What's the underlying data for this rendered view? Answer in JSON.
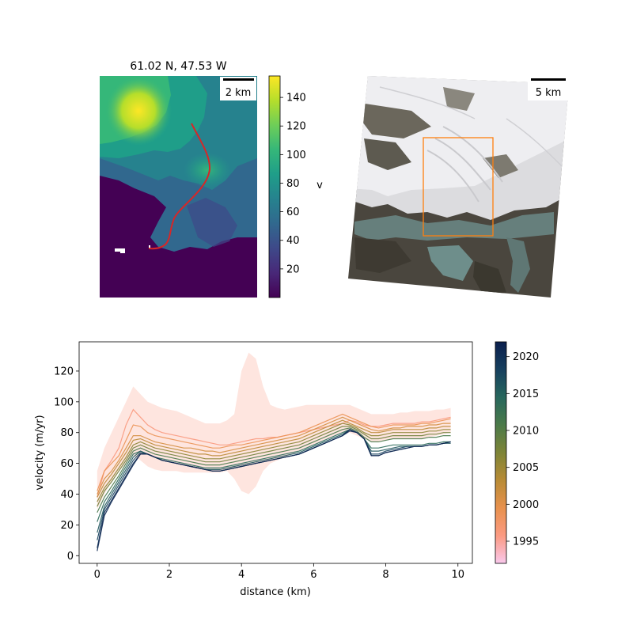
{
  "colors": {
    "viridis": [
      "#440154",
      "#482878",
      "#3e4989",
      "#31688e",
      "#26828e",
      "#1f9e89",
      "#35b779",
      "#6ece58",
      "#b5de2b",
      "#fde725"
    ],
    "time": [
      "#f9c8ec",
      "#fb9a82",
      "#e8914d",
      "#b88b35",
      "#7d8437",
      "#4b7a49",
      "#27675d",
      "#163f5e",
      "#0b1f4d"
    ],
    "profile_line": "#d62728",
    "inset_box": "#ff7f0e"
  },
  "velocity_map": {
    "title": "61.02 N, 47.53 W",
    "scalebar_label": "2 km",
    "colorbar_label": "v",
    "colorbar_ticks": [
      20,
      40,
      60,
      80,
      100,
      120,
      140
    ],
    "colorbar_range": [
      0,
      155
    ]
  },
  "satellite_map": {
    "scalebar_label": "5 km"
  },
  "chart_data": {
    "type": "line",
    "xlabel": "distance (km)",
    "ylabel": "velocity (m/yr)",
    "xlim": [
      -0.5,
      10.4
    ],
    "ylim": [
      -5,
      139
    ],
    "xticks": [
      0,
      2,
      4,
      6,
      8,
      10
    ],
    "yticks": [
      0,
      20,
      40,
      60,
      80,
      100,
      120
    ],
    "colorbar": {
      "ticks": [
        1995,
        2000,
        2005,
        2010,
        2015,
        2020
      ],
      "range": [
        1992,
        2022
      ]
    },
    "x": [
      0,
      0.2,
      0.4,
      0.6,
      0.8,
      1.0,
      1.2,
      1.4,
      1.6,
      1.8,
      2.0,
      2.2,
      2.4,
      2.6,
      2.8,
      3.0,
      3.2,
      3.4,
      3.6,
      3.8,
      4.0,
      4.2,
      4.4,
      4.6,
      4.8,
      5.0,
      5.2,
      5.4,
      5.6,
      5.8,
      6.0,
      6.2,
      6.4,
      6.6,
      6.8,
      7.0,
      7.2,
      7.4,
      7.6,
      7.8,
      8.0,
      8.2,
      8.4,
      8.6,
      8.8,
      9.0,
      9.2,
      9.4,
      9.6,
      9.8
    ],
    "series": [
      {
        "year": 1996,
        "values": [
          38,
          55,
          62,
          70,
          85,
          95,
          90,
          85,
          82,
          80,
          79,
          78,
          77,
          76,
          75,
          74,
          73,
          72,
          72,
          73,
          74,
          75,
          76,
          76,
          77,
          77,
          78,
          79,
          80,
          81,
          82,
          83,
          84,
          85,
          86,
          88,
          87,
          85,
          84,
          84,
          85,
          86,
          86,
          86,
          86,
          87,
          87,
          88,
          89,
          90
        ]
      },
      {
        "year": 1999,
        "values": [
          42,
          55,
          60,
          65,
          75,
          85,
          84,
          80,
          78,
          77,
          76,
          75,
          74,
          73,
          72,
          71,
          70,
          70,
          71,
          72,
          72,
          73,
          74,
          75,
          76,
          77,
          78,
          79,
          80,
          82,
          84,
          86,
          88,
          90,
          92,
          90,
          88,
          86,
          84,
          83,
          84,
          85,
          85,
          85,
          85,
          86,
          86,
          87,
          88,
          89
        ]
      },
      {
        "year": 2001,
        "values": [
          40,
          50,
          55,
          62,
          70,
          78,
          78,
          76,
          74,
          73,
          72,
          71,
          70,
          70,
          69,
          68,
          68,
          67,
          68,
          69,
          70,
          71,
          72,
          73,
          74,
          75,
          76,
          77,
          78,
          80,
          82,
          84,
          86,
          88,
          90,
          88,
          86,
          84,
          82,
          81,
          82,
          83,
          83,
          84,
          84,
          84,
          85,
          85,
          86,
          86
        ]
      },
      {
        "year": 2003,
        "values": [
          38,
          47,
          53,
          60,
          67,
          75,
          76,
          74,
          72,
          71,
          70,
          69,
          68,
          67,
          66,
          66,
          65,
          65,
          66,
          67,
          68,
          69,
          70,
          71,
          72,
          73,
          74,
          75,
          76,
          78,
          80,
          82,
          84,
          86,
          88,
          86,
          84,
          82,
          80,
          80,
          81,
          82,
          82,
          82,
          82,
          82,
          83,
          83,
          84,
          84
        ]
      },
      {
        "year": 2006,
        "values": [
          35,
          44,
          50,
          57,
          64,
          72,
          74,
          72,
          70,
          69,
          68,
          67,
          66,
          65,
          64,
          63,
          63,
          63,
          64,
          65,
          66,
          67,
          68,
          69,
          70,
          71,
          72,
          73,
          74,
          76,
          78,
          80,
          82,
          84,
          86,
          85,
          83,
          80,
          78,
          78,
          79,
          80,
          80,
          80,
          80,
          80,
          81,
          81,
          82,
          82
        ]
      },
      {
        "year": 2008,
        "values": [
          32,
          42,
          48,
          55,
          62,
          70,
          72,
          70,
          68,
          67,
          66,
          65,
          64,
          63,
          62,
          61,
          61,
          61,
          62,
          63,
          64,
          65,
          66,
          67,
          68,
          69,
          70,
          71,
          72,
          74,
          76,
          78,
          80,
          82,
          84,
          84,
          82,
          79,
          76,
          76,
          77,
          78,
          78,
          78,
          78,
          78,
          79,
          79,
          80,
          80
        ]
      },
      {
        "year": 2011,
        "values": [
          28,
          38,
          45,
          52,
          60,
          68,
          70,
          68,
          66,
          65,
          64,
          63,
          62,
          61,
          60,
          59,
          59,
          59,
          60,
          61,
          62,
          63,
          64,
          65,
          66,
          67,
          68,
          69,
          70,
          72,
          74,
          76,
          78,
          80,
          82,
          83,
          81,
          77,
          74,
          74,
          75,
          76,
          76,
          76,
          76,
          76,
          77,
          77,
          78,
          78
        ]
      },
      {
        "year": 2014,
        "values": [
          22,
          35,
          42,
          50,
          58,
          66,
          68,
          66,
          64,
          63,
          62,
          61,
          60,
          59,
          58,
          57,
          57,
          57,
          58,
          59,
          60,
          61,
          62,
          63,
          64,
          65,
          66,
          67,
          68,
          70,
          72,
          74,
          76,
          78,
          80,
          82,
          80,
          76,
          70,
          70,
          71,
          72,
          72,
          72,
          72,
          72,
          73,
          73,
          74,
          74
        ]
      },
      {
        "year": 2016,
        "values": [
          15,
          32,
          40,
          48,
          56,
          64,
          68,
          66,
          64,
          62,
          61,
          60,
          59,
          58,
          57,
          56,
          56,
          56,
          57,
          58,
          59,
          60,
          61,
          62,
          63,
          64,
          65,
          66,
          67,
          69,
          71,
          73,
          75,
          77,
          79,
          82,
          80,
          76,
          68,
          68,
          69,
          70,
          71,
          71,
          71,
          71,
          72,
          72,
          73,
          73
        ]
      },
      {
        "year": 2018,
        "values": [
          10,
          30,
          38,
          46,
          54,
          62,
          67,
          66,
          64,
          62,
          61,
          60,
          59,
          58,
          57,
          56,
          55,
          55,
          56,
          57,
          58,
          59,
          60,
          61,
          62,
          63,
          64,
          65,
          66,
          68,
          70,
          72,
          74,
          76,
          78,
          82,
          80,
          76,
          66,
          66,
          68,
          69,
          70,
          71,
          71,
          71,
          72,
          72,
          73,
          74
        ]
      },
      {
        "year": 2020,
        "values": [
          5,
          28,
          36,
          44,
          52,
          60,
          66,
          66,
          64,
          62,
          61,
          60,
          59,
          58,
          57,
          56,
          55,
          55,
          56,
          57,
          58,
          59,
          60,
          61,
          62,
          63,
          64,
          65,
          66,
          68,
          70,
          72,
          74,
          76,
          78,
          82,
          80,
          76,
          65,
          65,
          67,
          68,
          69,
          70,
          71,
          71,
          72,
          72,
          73,
          74
        ]
      },
      {
        "year": 2021,
        "values": [
          3,
          26,
          35,
          43,
          51,
          59,
          66,
          66,
          64,
          62,
          61,
          60,
          59,
          58,
          57,
          56,
          55,
          55,
          56,
          57,
          58,
          59,
          60,
          61,
          62,
          63,
          64,
          65,
          66,
          68,
          70,
          72,
          74,
          76,
          78,
          81,
          80,
          76,
          65,
          65,
          67,
          68,
          69,
          70,
          71,
          71,
          72,
          72,
          73,
          74
        ]
      }
    ],
    "band": {
      "year": 1996,
      "lower": [
        30,
        40,
        48,
        55,
        60,
        65,
        62,
        58,
        56,
        55,
        55,
        55,
        54,
        54,
        54,
        54,
        54,
        54,
        55,
        50,
        42,
        40,
        45,
        55,
        60,
        62,
        64,
        66,
        68,
        70,
        72,
        74,
        76,
        78,
        80,
        80,
        78,
        76,
        74,
        74,
        75,
        76,
        76,
        76,
        76,
        76,
        77,
        78,
        79,
        80
      ],
      "upper": [
        55,
        70,
        80,
        90,
        100,
        110,
        105,
        100,
        98,
        96,
        95,
        94,
        92,
        90,
        88,
        86,
        86,
        86,
        88,
        92,
        120,
        132,
        128,
        110,
        98,
        96,
        95,
        96,
        97,
        98,
        98,
        98,
        98,
        98,
        98,
        98,
        96,
        94,
        92,
        92,
        92,
        92,
        93,
        93,
        94,
        94,
        94,
        95,
        95,
        96
      ]
    }
  }
}
